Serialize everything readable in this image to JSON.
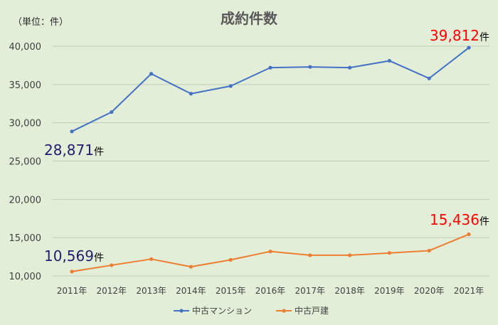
{
  "chart_data": {
    "type": "line",
    "title": "成約件数",
    "unit_label": "（単位：件）",
    "categories": [
      "2011年",
      "2012年",
      "2013年",
      "2014年",
      "2015年",
      "2016年",
      "2017年",
      "2018年",
      "2019年",
      "2020年",
      "2021年"
    ],
    "ylim": [
      10000,
      40000
    ],
    "yticks": [
      "10,000",
      "15,000",
      "20,000",
      "25,000",
      "30,000",
      "35,000",
      "40,000"
    ],
    "grid": true,
    "legend_position": "bottom",
    "series": [
      {
        "name": "中古マンション",
        "color": "#4472c4",
        "values": [
          28871,
          31400,
          36400,
          33800,
          34800,
          37200,
          37300,
          37200,
          38100,
          35800,
          39812
        ]
      },
      {
        "name": "中古戸建",
        "color": "#ed7d31",
        "values": [
          10569,
          11400,
          12200,
          11200,
          12100,
          13200,
          12700,
          12700,
          13000,
          13300,
          15436
        ]
      }
    ],
    "annotations": [
      {
        "number": "28,871",
        "suffix": "件",
        "color": "#1f1f6e"
      },
      {
        "number": "39,812",
        "suffix": "件",
        "color": "#ff0000"
      },
      {
        "number": "10,569",
        "suffix": "件",
        "color": "#1f1f6e"
      },
      {
        "number": "15,436",
        "suffix": "件",
        "color": "#ff0000"
      }
    ]
  }
}
